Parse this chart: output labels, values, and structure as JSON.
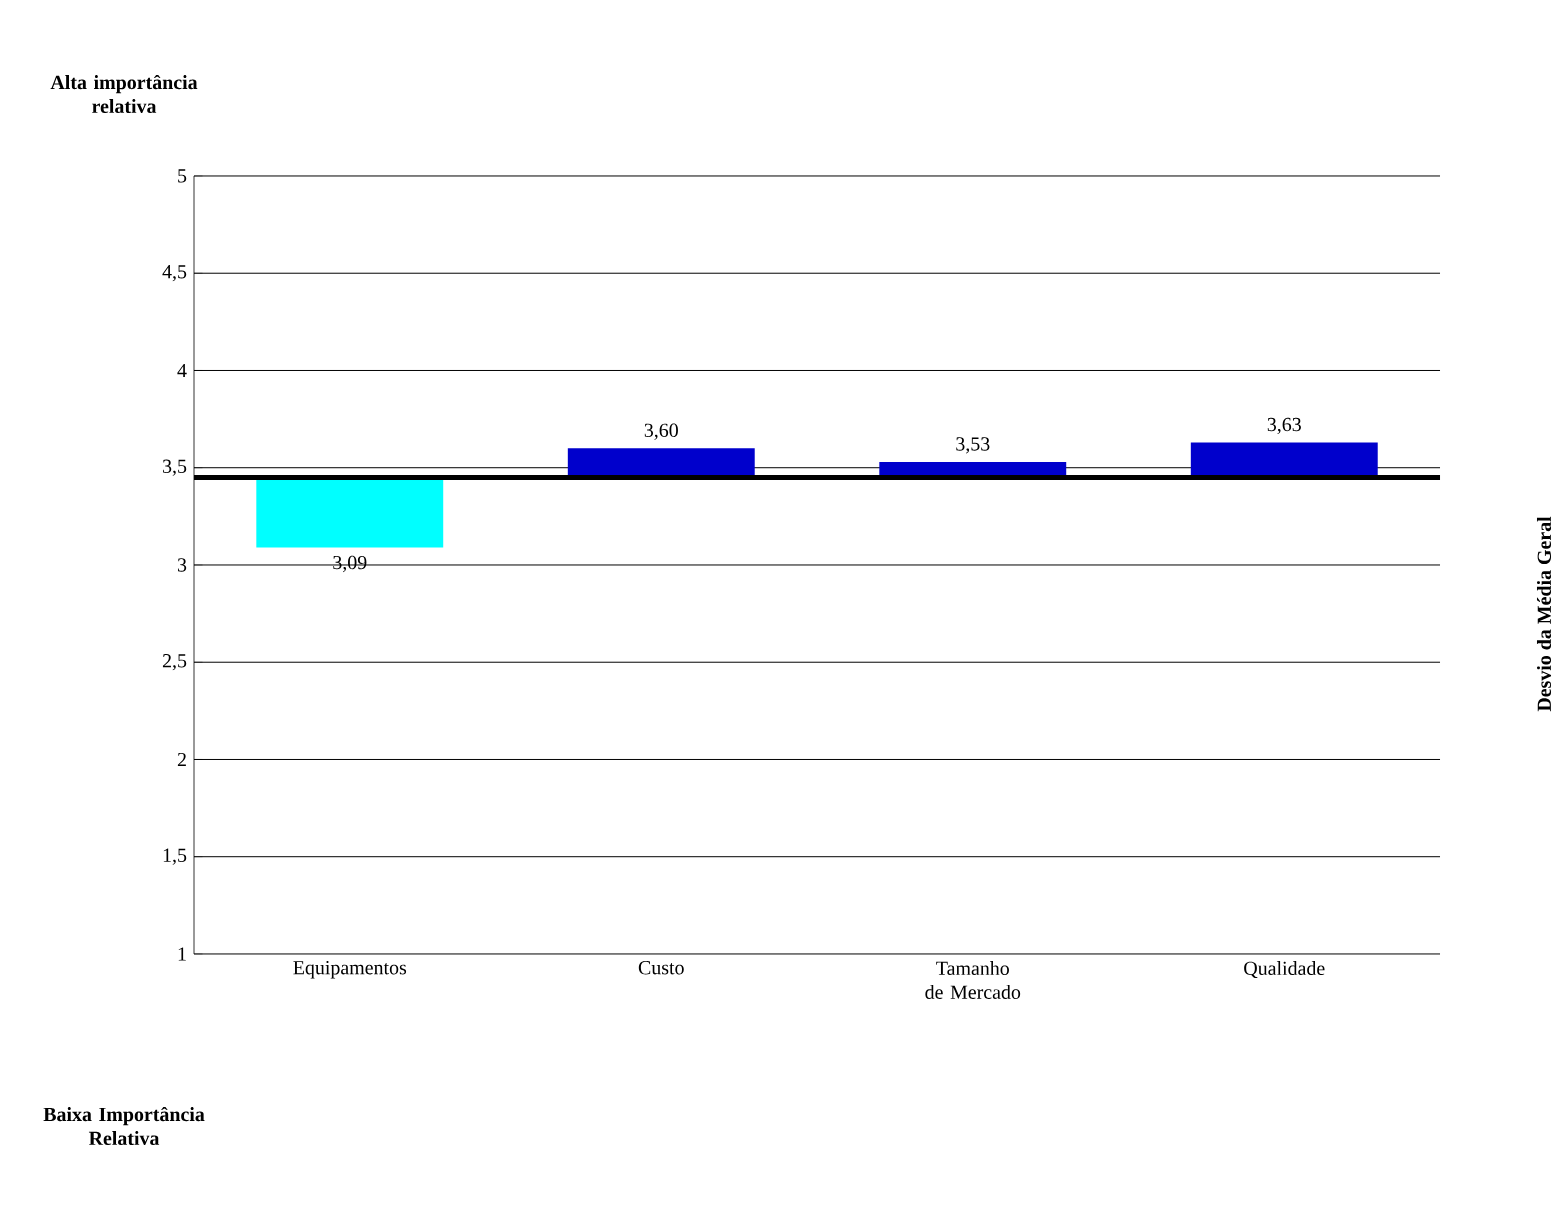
{
  "chart_data": {
    "type": "bar",
    "categories": [
      "Equipamentos",
      "Custo",
      "Tamanho de Mercado",
      "Qualidade"
    ],
    "base": [
      3.45,
      3.45,
      3.45,
      3.45
    ],
    "values": [
      -0.36,
      0.15,
      0.08,
      0.18
    ],
    "value_labels": [
      "3,09",
      "3,60",
      "3,53",
      "3,63"
    ],
    "colors": [
      "#00ffff",
      "#0000cc",
      "#0000cc",
      "#0000cc"
    ],
    "ylim": [
      1,
      5
    ],
    "yticks": [
      1,
      {
        "value": 1.5,
        "label": "1,5"
      },
      2,
      {
        "value": 2.5,
        "label": "2,5"
      },
      3,
      {
        "value": 3.5,
        "label": "3,5"
      },
      4,
      {
        "value": 4.5,
        "label": "4,5"
      },
      5
    ],
    "grid": "y",
    "ref_lines": [
      {
        "axis": "y",
        "value": 3.45,
        "label": null,
        "color": "#000000"
      }
    ],
    "annotations": [
      "Alta importância relativa",
      "Baixa Importância Relativa",
      "Desvio da Média Geral"
    ]
  }
}
